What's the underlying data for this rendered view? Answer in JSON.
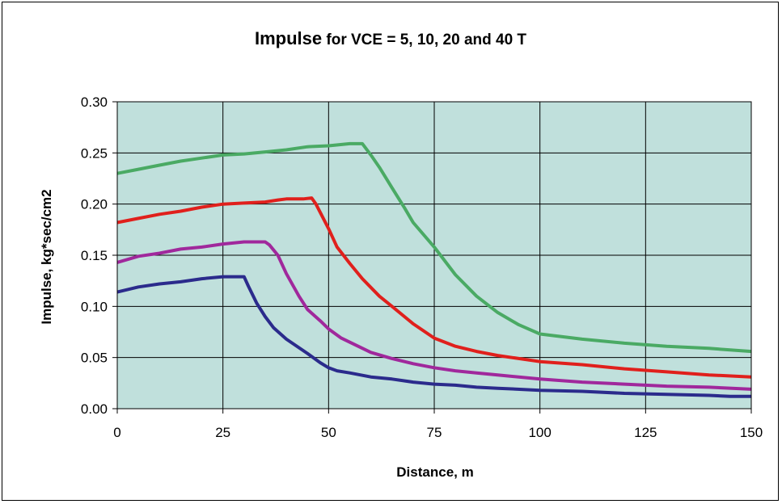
{
  "chart_data": {
    "type": "line",
    "title": {
      "main": "Impulse",
      "rest": " for VCE = 5, 10, 20 and 40 T"
    },
    "xlabel": "Distance, m",
    "ylabel": "Impulse, kg*sec/cm2",
    "xlim": [
      0,
      150
    ],
    "ylim": [
      0,
      0.3
    ],
    "xticks": [
      "0",
      "25",
      "50",
      "75",
      "100",
      "125",
      "150"
    ],
    "yticks": [
      "0.00",
      "0.05",
      "0.10",
      "0.15",
      "0.20",
      "0.25",
      "0.30"
    ],
    "grid": true,
    "legend": "none",
    "plot_background": "#c0e0dc",
    "series": [
      {
        "color": "#2b2b8c",
        "points": [
          [
            0,
            0.114
          ],
          [
            5,
            0.119
          ],
          [
            10,
            0.122
          ],
          [
            15,
            0.124
          ],
          [
            20,
            0.127
          ],
          [
            25,
            0.129
          ],
          [
            30,
            0.129
          ],
          [
            31,
            0.12
          ],
          [
            33,
            0.103
          ],
          [
            35,
            0.09
          ],
          [
            37,
            0.079
          ],
          [
            40,
            0.068
          ],
          [
            45,
            0.054
          ],
          [
            48,
            0.045
          ],
          [
            50,
            0.04
          ],
          [
            52,
            0.037
          ],
          [
            55,
            0.035
          ],
          [
            60,
            0.031
          ],
          [
            65,
            0.029
          ],
          [
            70,
            0.026
          ],
          [
            75,
            0.024
          ],
          [
            80,
            0.023
          ],
          [
            85,
            0.021
          ],
          [
            90,
            0.02
          ],
          [
            100,
            0.018
          ],
          [
            110,
            0.017
          ],
          [
            120,
            0.015
          ],
          [
            130,
            0.014
          ],
          [
            140,
            0.013
          ],
          [
            145,
            0.012
          ],
          [
            150,
            0.012
          ]
        ]
      },
      {
        "color": "#a0289c",
        "points": [
          [
            0,
            0.143
          ],
          [
            5,
            0.149
          ],
          [
            10,
            0.152
          ],
          [
            15,
            0.156
          ],
          [
            20,
            0.158
          ],
          [
            25,
            0.161
          ],
          [
            30,
            0.163
          ],
          [
            35,
            0.163
          ],
          [
            36,
            0.16
          ],
          [
            38,
            0.15
          ],
          [
            40,
            0.132
          ],
          [
            43,
            0.11
          ],
          [
            45,
            0.097
          ],
          [
            48,
            0.086
          ],
          [
            50,
            0.078
          ],
          [
            53,
            0.069
          ],
          [
            57,
            0.061
          ],
          [
            60,
            0.055
          ],
          [
            65,
            0.049
          ],
          [
            70,
            0.044
          ],
          [
            75,
            0.04
          ],
          [
            80,
            0.037
          ],
          [
            85,
            0.035
          ],
          [
            90,
            0.033
          ],
          [
            100,
            0.029
          ],
          [
            110,
            0.026
          ],
          [
            120,
            0.024
          ],
          [
            130,
            0.022
          ],
          [
            140,
            0.021
          ],
          [
            150,
            0.019
          ]
        ]
      },
      {
        "color": "#e0201c",
        "points": [
          [
            0,
            0.182
          ],
          [
            5,
            0.186
          ],
          [
            10,
            0.19
          ],
          [
            15,
            0.193
          ],
          [
            20,
            0.197
          ],
          [
            25,
            0.2
          ],
          [
            30,
            0.201
          ],
          [
            35,
            0.202
          ],
          [
            38,
            0.204
          ],
          [
            40,
            0.205
          ],
          [
            44,
            0.205
          ],
          [
            46,
            0.206
          ],
          [
            47,
            0.2
          ],
          [
            48,
            0.192
          ],
          [
            50,
            0.176
          ],
          [
            52,
            0.158
          ],
          [
            55,
            0.142
          ],
          [
            58,
            0.127
          ],
          [
            62,
            0.11
          ],
          [
            65,
            0.1
          ],
          [
            70,
            0.083
          ],
          [
            75,
            0.069
          ],
          [
            80,
            0.061
          ],
          [
            85,
            0.056
          ],
          [
            90,
            0.052
          ],
          [
            95,
            0.049
          ],
          [
            100,
            0.046
          ],
          [
            110,
            0.043
          ],
          [
            120,
            0.039
          ],
          [
            130,
            0.036
          ],
          [
            140,
            0.033
          ],
          [
            150,
            0.031
          ]
        ]
      },
      {
        "color": "#4aaa64",
        "points": [
          [
            0,
            0.23
          ],
          [
            5,
            0.234
          ],
          [
            10,
            0.238
          ],
          [
            15,
            0.242
          ],
          [
            20,
            0.245
          ],
          [
            25,
            0.248
          ],
          [
            30,
            0.249
          ],
          [
            35,
            0.251
          ],
          [
            40,
            0.253
          ],
          [
            45,
            0.256
          ],
          [
            50,
            0.257
          ],
          [
            55,
            0.259
          ],
          [
            58,
            0.259
          ],
          [
            60,
            0.248
          ],
          [
            62,
            0.236
          ],
          [
            65,
            0.216
          ],
          [
            68,
            0.196
          ],
          [
            70,
            0.182
          ],
          [
            75,
            0.158
          ],
          [
            80,
            0.131
          ],
          [
            85,
            0.11
          ],
          [
            90,
            0.094
          ],
          [
            95,
            0.082
          ],
          [
            100,
            0.073
          ],
          [
            110,
            0.068
          ],
          [
            120,
            0.064
          ],
          [
            130,
            0.061
          ],
          [
            140,
            0.059
          ],
          [
            150,
            0.056
          ]
        ]
      }
    ]
  }
}
